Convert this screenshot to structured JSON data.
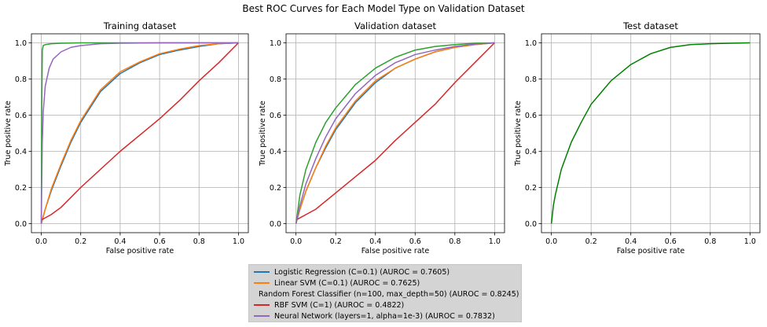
{
  "figure": {
    "title": "Best ROC Curves for Each Model Type on Validation Dataset"
  },
  "legend": [
    {
      "label": "Logistic Regression (C=0.1) (AUROC = 0.7605)",
      "color": "#1f77b4"
    },
    {
      "label": "Linear SVM (C=0.1) (AUROC = 0.7625)",
      "color": "#ff7f0e"
    },
    {
      "label": "Random Forest Classifier (n=100, max_depth=50) (AUROC = 0.8245)",
      "color": "#2ca02c"
    },
    {
      "label": "RBF SVM (C=1) (AUROC = 0.4822)",
      "color": "#d62728"
    },
    {
      "label": "Neural Network (layers=1, alpha=1e-3) (AUROC = 0.7832)",
      "color": "#9467bd"
    }
  ],
  "chart_data": [
    {
      "type": "line",
      "title": "Training dataset",
      "xlabel": "False positive rate",
      "ylabel": "True positive rate",
      "xlim": [
        0,
        1
      ],
      "ylim": [
        0,
        1
      ],
      "xticks": [
        "0.0",
        "0.2",
        "0.4",
        "0.6",
        "0.8",
        "1.0"
      ],
      "yticks": [
        "0.0",
        "0.2",
        "0.4",
        "0.6",
        "0.8",
        "1.0"
      ],
      "grid": true,
      "series": [
        {
          "name": "Logistic Regression (C=0.1) (AUROC = 0.7605)",
          "color": "#1f77b4",
          "x": [
            0,
            0.02,
            0.05,
            0.1,
            0.15,
            0.2,
            0.3,
            0.4,
            0.5,
            0.6,
            0.7,
            0.8,
            0.9,
            1.0
          ],
          "y": [
            0,
            0.08,
            0.18,
            0.32,
            0.45,
            0.56,
            0.73,
            0.83,
            0.89,
            0.935,
            0.96,
            0.98,
            0.995,
            1.0
          ]
        },
        {
          "name": "Linear SVM (C=0.1) (AUROC = 0.7625)",
          "color": "#ff7f0e",
          "x": [
            0,
            0.02,
            0.05,
            0.1,
            0.15,
            0.2,
            0.3,
            0.4,
            0.5,
            0.6,
            0.7,
            0.8,
            0.9,
            1.0
          ],
          "y": [
            0,
            0.08,
            0.19,
            0.33,
            0.46,
            0.57,
            0.74,
            0.84,
            0.895,
            0.94,
            0.965,
            0.985,
            0.995,
            1.0
          ]
        },
        {
          "name": "Random Forest Classifier (n=100, max_depth=50) (AUROC = 0.8245)",
          "color": "#2ca02c",
          "x": [
            0,
            0.002,
            0.005,
            0.01,
            0.02,
            0.05,
            0.1,
            0.2,
            0.4,
            0.6,
            0.8,
            1.0
          ],
          "y": [
            0,
            0.6,
            0.96,
            0.985,
            0.99,
            0.995,
            0.998,
            1.0,
            1.0,
            1.0,
            1.0,
            1.0
          ]
        },
        {
          "name": "RBF SVM (C=1) (AUROC = 0.4822)",
          "color": "#d62728",
          "x": [
            0,
            0.05,
            0.1,
            0.2,
            0.3,
            0.4,
            0.5,
            0.6,
            0.7,
            0.8,
            0.9,
            1.0
          ],
          "y": [
            0.02,
            0.05,
            0.09,
            0.2,
            0.3,
            0.4,
            0.49,
            0.58,
            0.68,
            0.79,
            0.89,
            1.0
          ]
        },
        {
          "name": "Neural Network (layers=1, alpha=1e-3) (AUROC = 0.7832)",
          "color": "#9467bd",
          "x": [
            0,
            0.005,
            0.01,
            0.02,
            0.04,
            0.06,
            0.1,
            0.15,
            0.2,
            0.3,
            0.4,
            0.6,
            0.8,
            1.0
          ],
          "y": [
            0,
            0.45,
            0.62,
            0.76,
            0.86,
            0.91,
            0.95,
            0.975,
            0.985,
            0.995,
            0.998,
            1.0,
            1.0,
            1.0
          ]
        }
      ]
    },
    {
      "type": "line",
      "title": "Validation dataset",
      "xlabel": "False positive rate",
      "ylabel": "True positive rate",
      "xlim": [
        0,
        1
      ],
      "ylim": [
        0,
        1
      ],
      "xticks": [
        "0.0",
        "0.2",
        "0.4",
        "0.6",
        "0.8",
        "1.0"
      ],
      "yticks": [
        "0.0",
        "0.2",
        "0.4",
        "0.6",
        "0.8",
        "1.0"
      ],
      "grid": true,
      "series": [
        {
          "name": "Logistic Regression (C=0.1) (AUROC = 0.7605)",
          "color": "#1f77b4",
          "x": [
            0,
            0.02,
            0.05,
            0.1,
            0.15,
            0.2,
            0.3,
            0.4,
            0.5,
            0.6,
            0.7,
            0.8,
            0.9,
            1.0
          ],
          "y": [
            0,
            0.08,
            0.18,
            0.31,
            0.42,
            0.52,
            0.67,
            0.78,
            0.86,
            0.91,
            0.95,
            0.975,
            0.99,
            1.0
          ]
        },
        {
          "name": "Linear SVM (C=0.1) (AUROC = 0.7625)",
          "color": "#ff7f0e",
          "x": [
            0,
            0.02,
            0.05,
            0.1,
            0.15,
            0.2,
            0.3,
            0.4,
            0.5,
            0.6,
            0.7,
            0.8,
            0.9,
            1.0
          ],
          "y": [
            0,
            0.08,
            0.18,
            0.31,
            0.43,
            0.53,
            0.68,
            0.79,
            0.86,
            0.91,
            0.95,
            0.975,
            0.99,
            1.0
          ]
        },
        {
          "name": "Random Forest Classifier (n=100, max_depth=50) (AUROC = 0.8245)",
          "color": "#2ca02c",
          "x": [
            0,
            0.02,
            0.05,
            0.1,
            0.15,
            0.2,
            0.3,
            0.4,
            0.5,
            0.6,
            0.7,
            0.8,
            0.9,
            1.0
          ],
          "y": [
            0,
            0.16,
            0.3,
            0.45,
            0.56,
            0.64,
            0.77,
            0.86,
            0.92,
            0.96,
            0.98,
            0.99,
            0.998,
            1.0
          ]
        },
        {
          "name": "RBF SVM (C=1) (AUROC = 0.4822)",
          "color": "#d62728",
          "x": [
            0,
            0.05,
            0.1,
            0.2,
            0.3,
            0.4,
            0.5,
            0.6,
            0.7,
            0.8,
            0.9,
            1.0
          ],
          "y": [
            0.02,
            0.05,
            0.08,
            0.17,
            0.26,
            0.35,
            0.46,
            0.56,
            0.66,
            0.78,
            0.89,
            1.0
          ]
        },
        {
          "name": "Neural Network (layers=1, alpha=1e-3) (AUROC = 0.7832)",
          "color": "#9467bd",
          "x": [
            0,
            0.02,
            0.05,
            0.1,
            0.15,
            0.2,
            0.3,
            0.4,
            0.5,
            0.6,
            0.7,
            0.8,
            0.9,
            1.0
          ],
          "y": [
            0,
            0.1,
            0.22,
            0.36,
            0.48,
            0.58,
            0.72,
            0.82,
            0.89,
            0.935,
            0.96,
            0.98,
            0.993,
            1.0
          ]
        }
      ]
    },
    {
      "type": "line",
      "title": "Test dataset",
      "xlabel": "False positive rate",
      "ylabel": "True positive rate",
      "xlim": [
        0,
        1
      ],
      "ylim": [
        0,
        1
      ],
      "xticks": [
        "0.0",
        "0.2",
        "0.4",
        "0.6",
        "0.8",
        "1.0"
      ],
      "yticks": [
        "0.0",
        "0.2",
        "0.4",
        "0.6",
        "0.8",
        "1.0"
      ],
      "grid": true,
      "series": [
        {
          "name": "Random Forest Classifier (n=100, max_depth=50) (AUROC = 0.8245)",
          "color": "#008000",
          "x": [
            0,
            0.01,
            0.02,
            0.05,
            0.1,
            0.15,
            0.2,
            0.3,
            0.4,
            0.5,
            0.6,
            0.7,
            0.8,
            0.9,
            1.0
          ],
          "y": [
            0,
            0.1,
            0.16,
            0.3,
            0.45,
            0.56,
            0.66,
            0.79,
            0.88,
            0.94,
            0.975,
            0.99,
            0.995,
            0.998,
            1.0
          ]
        }
      ]
    }
  ]
}
